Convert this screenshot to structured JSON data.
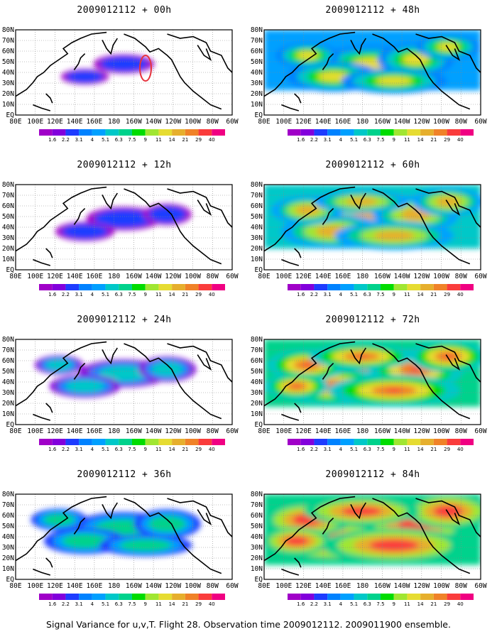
{
  "panels": [
    {
      "id": "p00",
      "title": "2009012112 + 00h",
      "level": 0
    },
    {
      "id": "p48",
      "title": "2009012112 + 48h",
      "level": 4
    },
    {
      "id": "p12",
      "title": "2009012112 + 12h",
      "level": 1
    },
    {
      "id": "p60",
      "title": "2009012112 + 60h",
      "level": 5
    },
    {
      "id": "p24",
      "title": "2009012112 + 24h",
      "level": 2
    },
    {
      "id": "p72",
      "title": "2009012112 + 72h",
      "level": 6
    },
    {
      "id": "p36",
      "title": "2009012112 + 36h",
      "level": 3
    },
    {
      "id": "p84",
      "title": "2009012112 + 84h",
      "level": 7
    }
  ],
  "lon_labels": [
    "80E",
    "100E",
    "120E",
    "140E",
    "160E",
    "180",
    "160W",
    "140W",
    "120W",
    "100W",
    "80W",
    "60W"
  ],
  "lat_labels": [
    "EQ",
    "10N",
    "20N",
    "30N",
    "40N",
    "50N",
    "60N",
    "70N",
    "80N"
  ],
  "colorbar": {
    "labels": [
      "1.6",
      "2.2",
      "3.1",
      "4",
      "5.1",
      "6.3",
      "7.5",
      "9",
      "11",
      "14",
      "21",
      "29",
      "40"
    ],
    "colors": [
      "#a000c8",
      "#8200dc",
      "#1e3cff",
      "#0082ff",
      "#00a0ff",
      "#00c8c8",
      "#00d28c",
      "#00dc00",
      "#a0e632",
      "#e6dc32",
      "#e6af2d",
      "#f08228",
      "#fa3c3c",
      "#f00082"
    ]
  },
  "caption": "Signal Variance for u,v,T. Flight 28. Observation time 2009012112. 2009011900 ensemble."
}
